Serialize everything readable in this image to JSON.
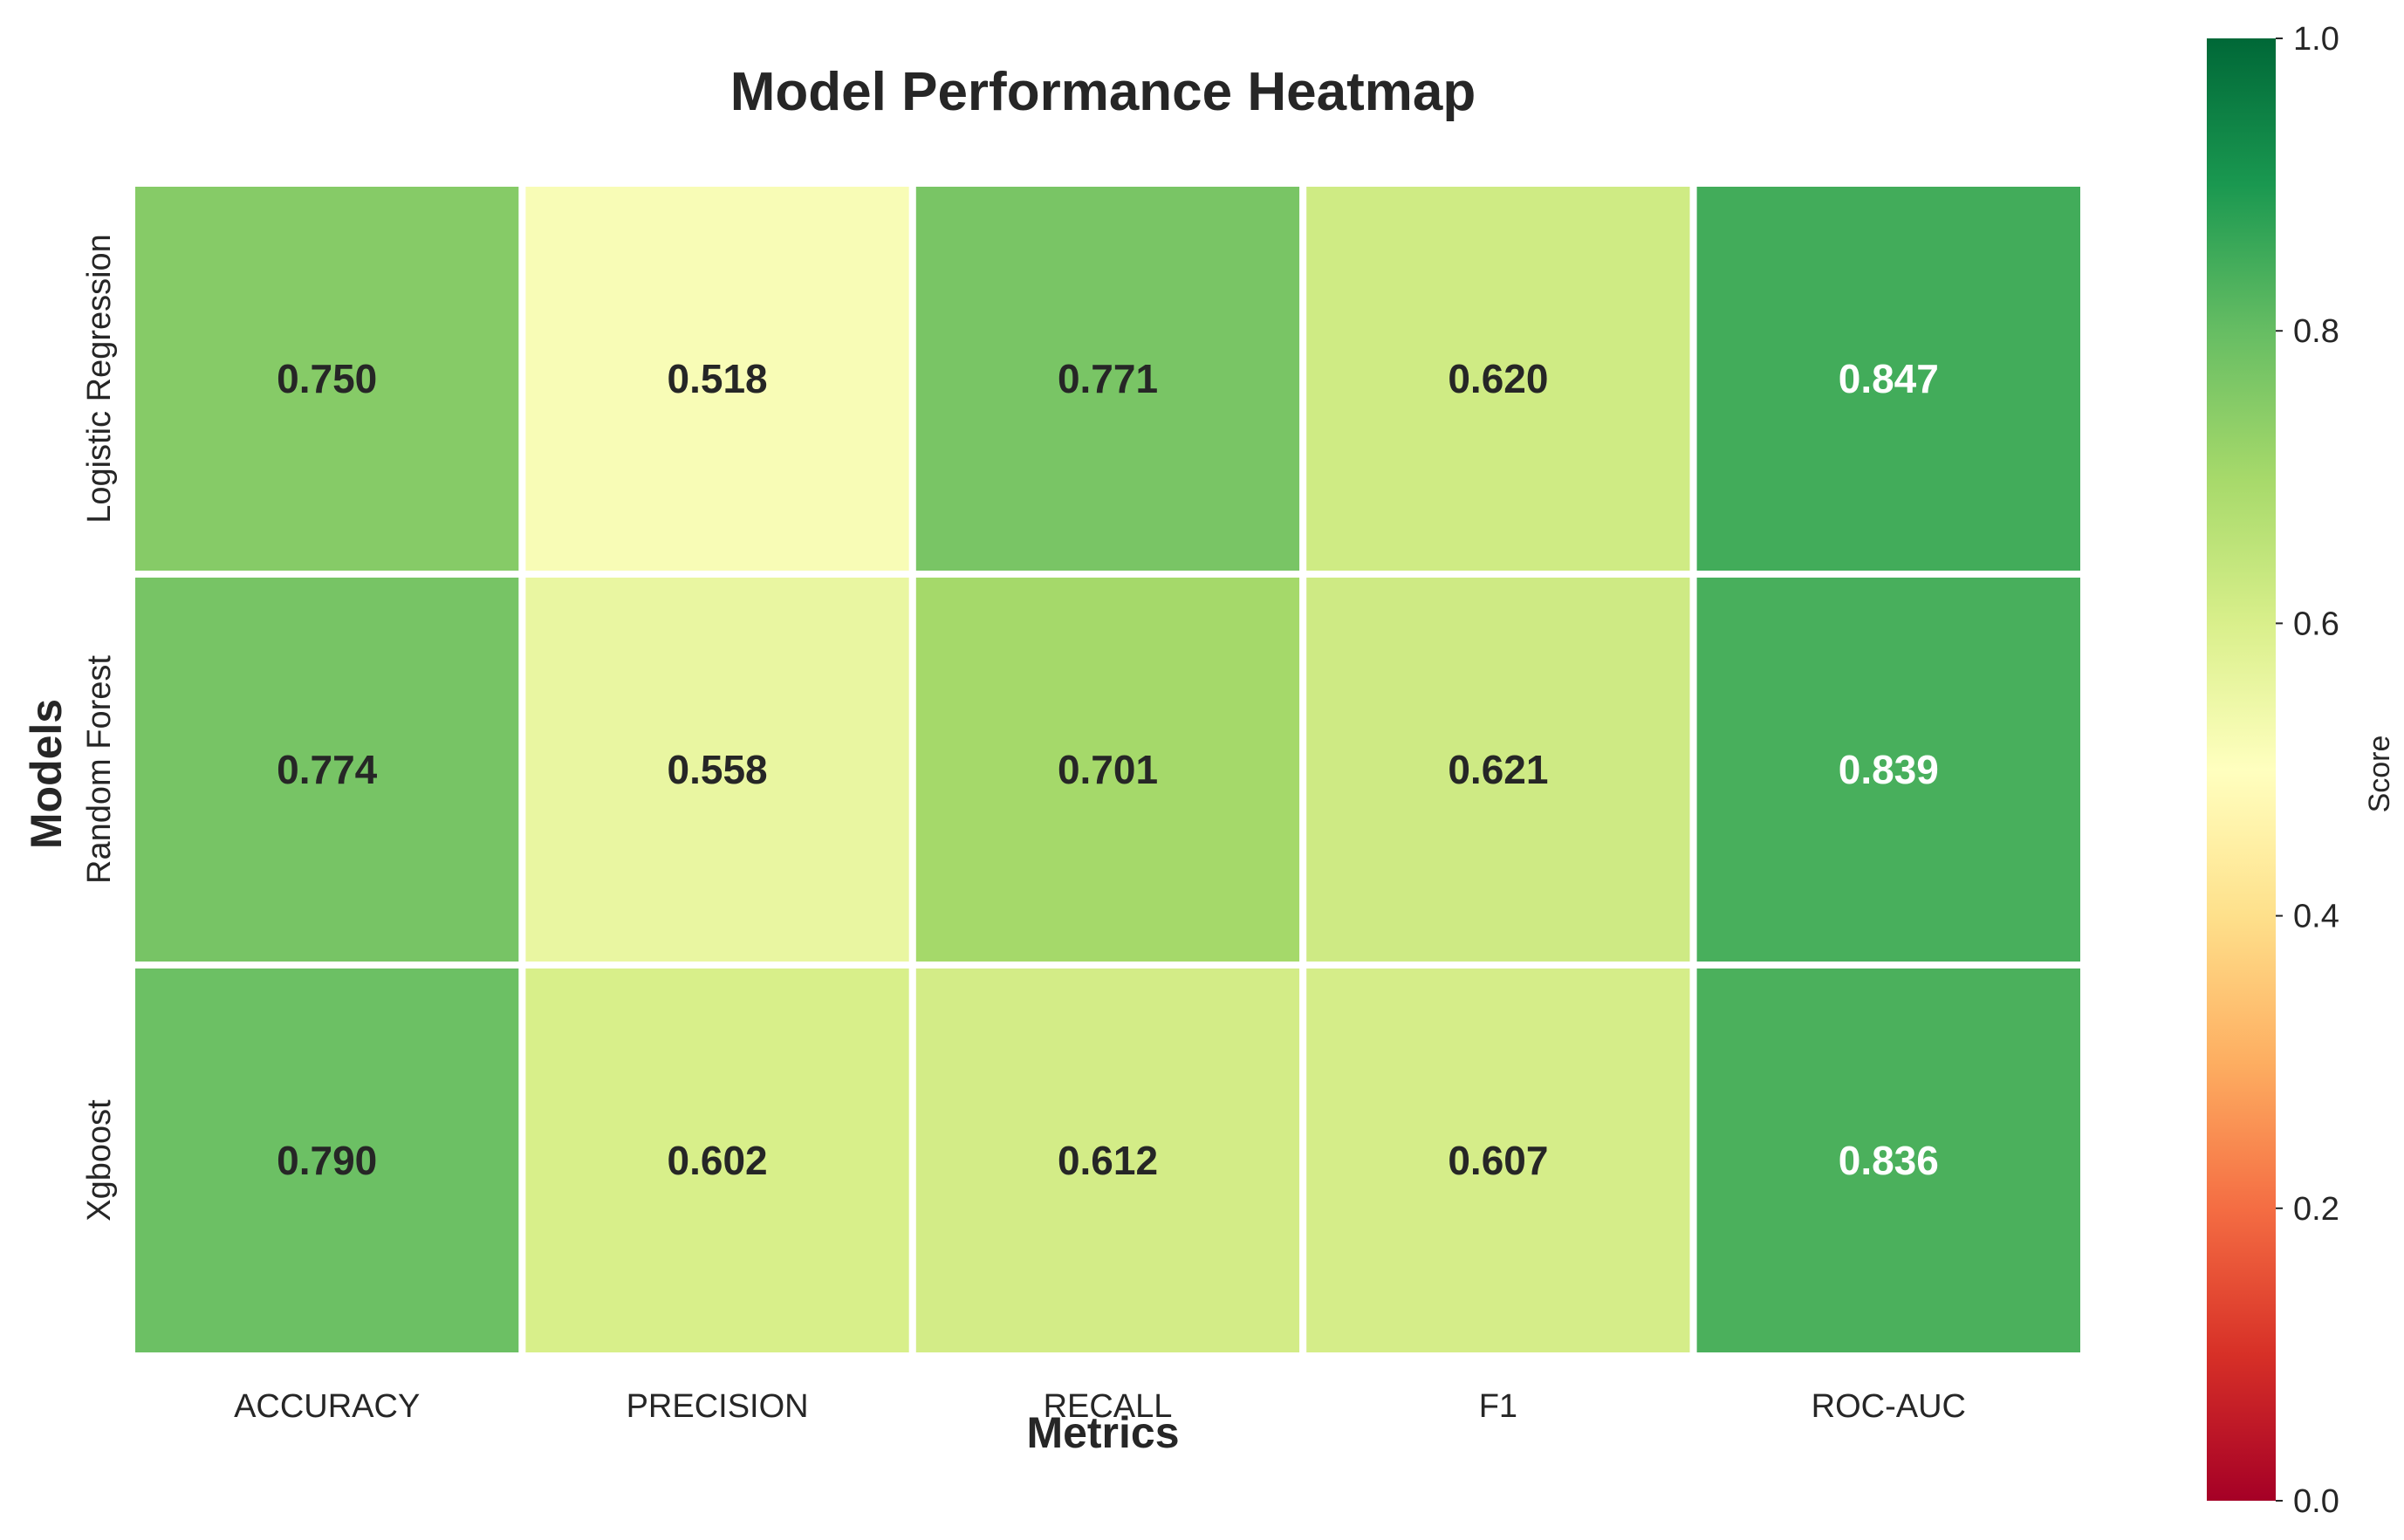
{
  "chart_data": {
    "type": "heatmap",
    "title": "Model Performance Heatmap",
    "xlabel": "Metrics",
    "ylabel": "Models",
    "x_categories": [
      "ACCURACY",
      "PRECISION",
      "RECALL",
      "F1",
      "ROC-AUC"
    ],
    "y_categories": [
      "Logistic Regression",
      "Random Forest",
      "Xgboost"
    ],
    "values": [
      [
        0.75,
        0.518,
        0.771,
        0.62,
        0.847
      ],
      [
        0.774,
        0.558,
        0.701,
        0.621,
        0.839
      ],
      [
        0.79,
        0.602,
        0.612,
        0.607,
        0.836
      ]
    ],
    "value_labels": [
      [
        "0.750",
        "0.518",
        "0.771",
        "0.620",
        "0.847"
      ],
      [
        "0.774",
        "0.558",
        "0.701",
        "0.621",
        "0.839"
      ],
      [
        "0.790",
        "0.602",
        "0.612",
        "0.607",
        "0.836"
      ]
    ],
    "colormap": "RdYlGn",
    "vmin": 0.0,
    "vmax": 1.0,
    "colorbar": {
      "label": "Score",
      "ticks": [
        "0.0",
        "0.2",
        "0.4",
        "0.6",
        "0.8",
        "1.0"
      ]
    },
    "grid": false
  }
}
